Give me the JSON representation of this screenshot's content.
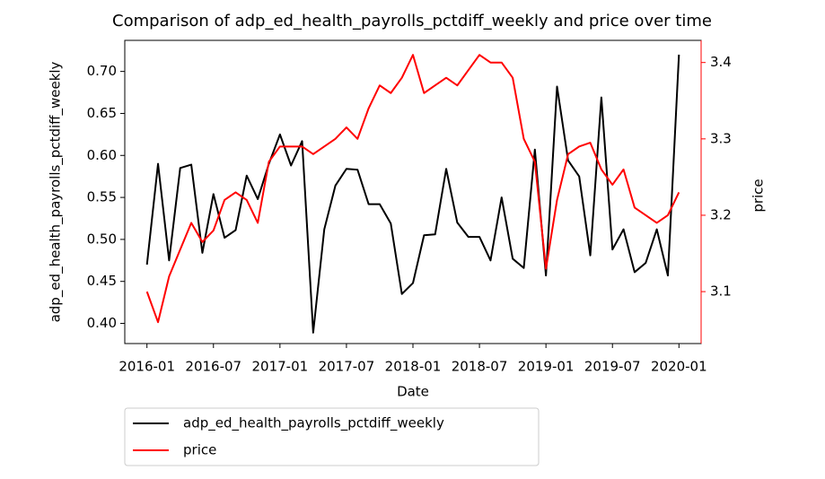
{
  "chart_data": {
    "type": "line",
    "title": "Comparison of adp_ed_health_payrolls_pctdiff_weekly and price over time",
    "xlabel": "Date",
    "ylabel": "adp_ed_health_payrolls_pctdiff_weekly",
    "y2label": "price",
    "x": [
      "2016-01",
      "2016-02",
      "2016-03",
      "2016-04",
      "2016-05",
      "2016-06",
      "2016-07",
      "2016-08",
      "2016-09",
      "2016-10",
      "2016-11",
      "2016-12",
      "2017-01",
      "2017-02",
      "2017-03",
      "2017-04",
      "2017-05",
      "2017-06",
      "2017-07",
      "2017-08",
      "2017-09",
      "2017-10",
      "2017-11",
      "2017-12",
      "2018-01",
      "2018-02",
      "2018-03",
      "2018-04",
      "2018-05",
      "2018-06",
      "2018-07",
      "2018-08",
      "2018-09",
      "2018-10",
      "2018-11",
      "2018-12",
      "2019-01",
      "2019-02",
      "2019-03",
      "2019-04",
      "2019-05",
      "2019-06",
      "2019-07",
      "2019-08",
      "2019-09",
      "2019-10",
      "2019-11",
      "2019-12",
      "2020-01"
    ],
    "xlim": [
      "2015-11",
      "2020-03"
    ],
    "xticks": [
      "2016-01",
      "2016-07",
      "2017-01",
      "2017-07",
      "2018-01",
      "2018-07",
      "2019-01",
      "2019-07",
      "2020-01"
    ],
    "ylim": [
      0.376,
      0.737
    ],
    "yticks": [
      {
        "value": 0.4,
        "label": "0.40"
      },
      0.45,
      {
        "value": 0.5,
        "label": "0.50"
      },
      0.55,
      {
        "value": 0.6,
        "label": "0.60"
      },
      0.65,
      {
        "value": 0.7,
        "label": "0.70"
      }
    ],
    "y2lim": [
      3.032,
      3.429
    ],
    "y2ticks": [
      3.1,
      3.2,
      3.3,
      3.4
    ],
    "legend": "below-left",
    "series": [
      {
        "name": "adp_ed_health_payrolls_pctdiff_weekly",
        "color": "#000000",
        "values": [
          0.47,
          0.59,
          0.475,
          0.585,
          0.589,
          0.484,
          0.554,
          0.502,
          0.511,
          0.576,
          0.548,
          0.59,
          0.625,
          0.588,
          0.617,
          0.389,
          0.512,
          0.564,
          0.584,
          0.583,
          0.542,
          0.542,
          0.519,
          0.435,
          0.448,
          0.505,
          0.506,
          0.584,
          0.52,
          0.503,
          0.503,
          0.475,
          0.55,
          0.477,
          0.466,
          0.607,
          0.457,
          0.682,
          0.594,
          0.575,
          0.481,
          0.669,
          0.488,
          0.512,
          0.461,
          0.472,
          0.512,
          0.457,
          0.72
        ]
      },
      {
        "name": "price",
        "color": "#ff0000",
        "axis": "y2",
        "values": [
          3.1,
          3.06,
          3.12,
          3.155,
          3.19,
          3.165,
          3.18,
          3.22,
          3.23,
          3.22,
          3.19,
          3.27,
          3.29,
          3.29,
          3.29,
          3.28,
          3.29,
          3.3,
          3.315,
          3.3,
          3.34,
          3.37,
          3.36,
          3.38,
          3.41,
          3.36,
          3.37,
          3.38,
          3.37,
          3.39,
          3.41,
          3.4,
          3.4,
          3.38,
          3.3,
          3.27,
          3.13,
          3.22,
          3.28,
          3.29,
          3.295,
          3.26,
          3.24,
          3.26,
          3.21,
          3.2,
          3.19,
          3.2,
          3.23
        ]
      }
    ]
  }
}
